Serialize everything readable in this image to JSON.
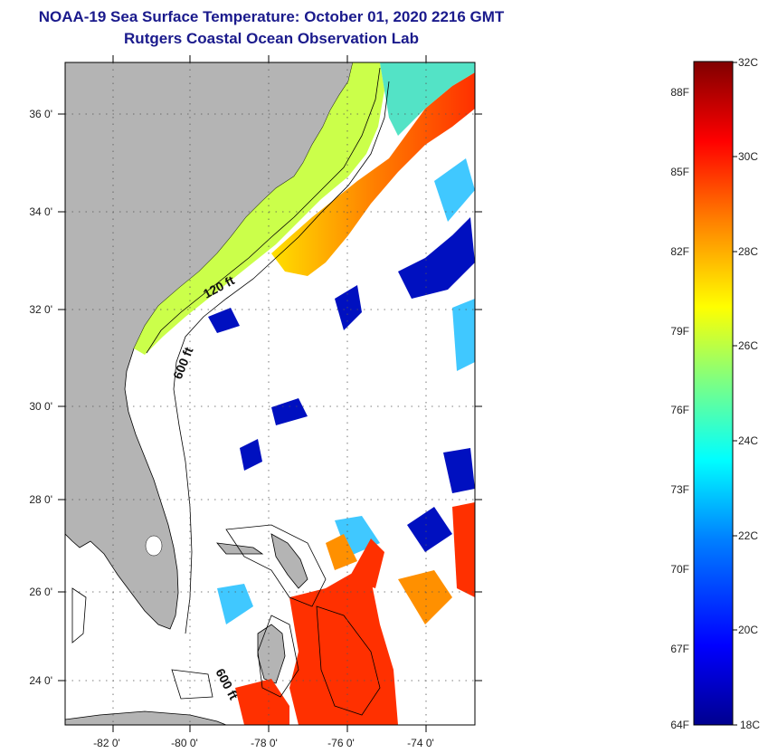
{
  "title": "NOAA-19 Sea Surface Temperature:  October 01, 2020 2216 GMT",
  "subtitle": "Rutgers Coastal Ocean Observation Lab",
  "map": {
    "lon_ticks": [
      "-82 0'",
      "-80 0'",
      "-78 0'",
      "-76 0'",
      "-74 0'"
    ],
    "lat_ticks": [
      "36 0'",
      "34 0'",
      "32 0'",
      "30 0'",
      "28 0'",
      "26 0'",
      "24 0'"
    ],
    "contour_labels": [
      "120 ft",
      "600 ft",
      "600 ft"
    ],
    "land_color": "#b4b4b4",
    "cloud_color": "#ffffff"
  },
  "colorbar": {
    "celsius_labels": [
      "32C",
      "30C",
      "28C",
      "26C",
      "24C",
      "22C",
      "20C",
      "18C"
    ],
    "fahrenheit_labels": [
      "88F",
      "85F",
      "82F",
      "79F",
      "76F",
      "73F",
      "70F",
      "67F",
      "64F"
    ],
    "range_c": [
      18,
      32
    ],
    "colors": [
      "#00008f",
      "#0000ff",
      "#0080ff",
      "#00ffff",
      "#80ff80",
      "#ffff00",
      "#ff8000",
      "#ff0000",
      "#800000"
    ]
  }
}
